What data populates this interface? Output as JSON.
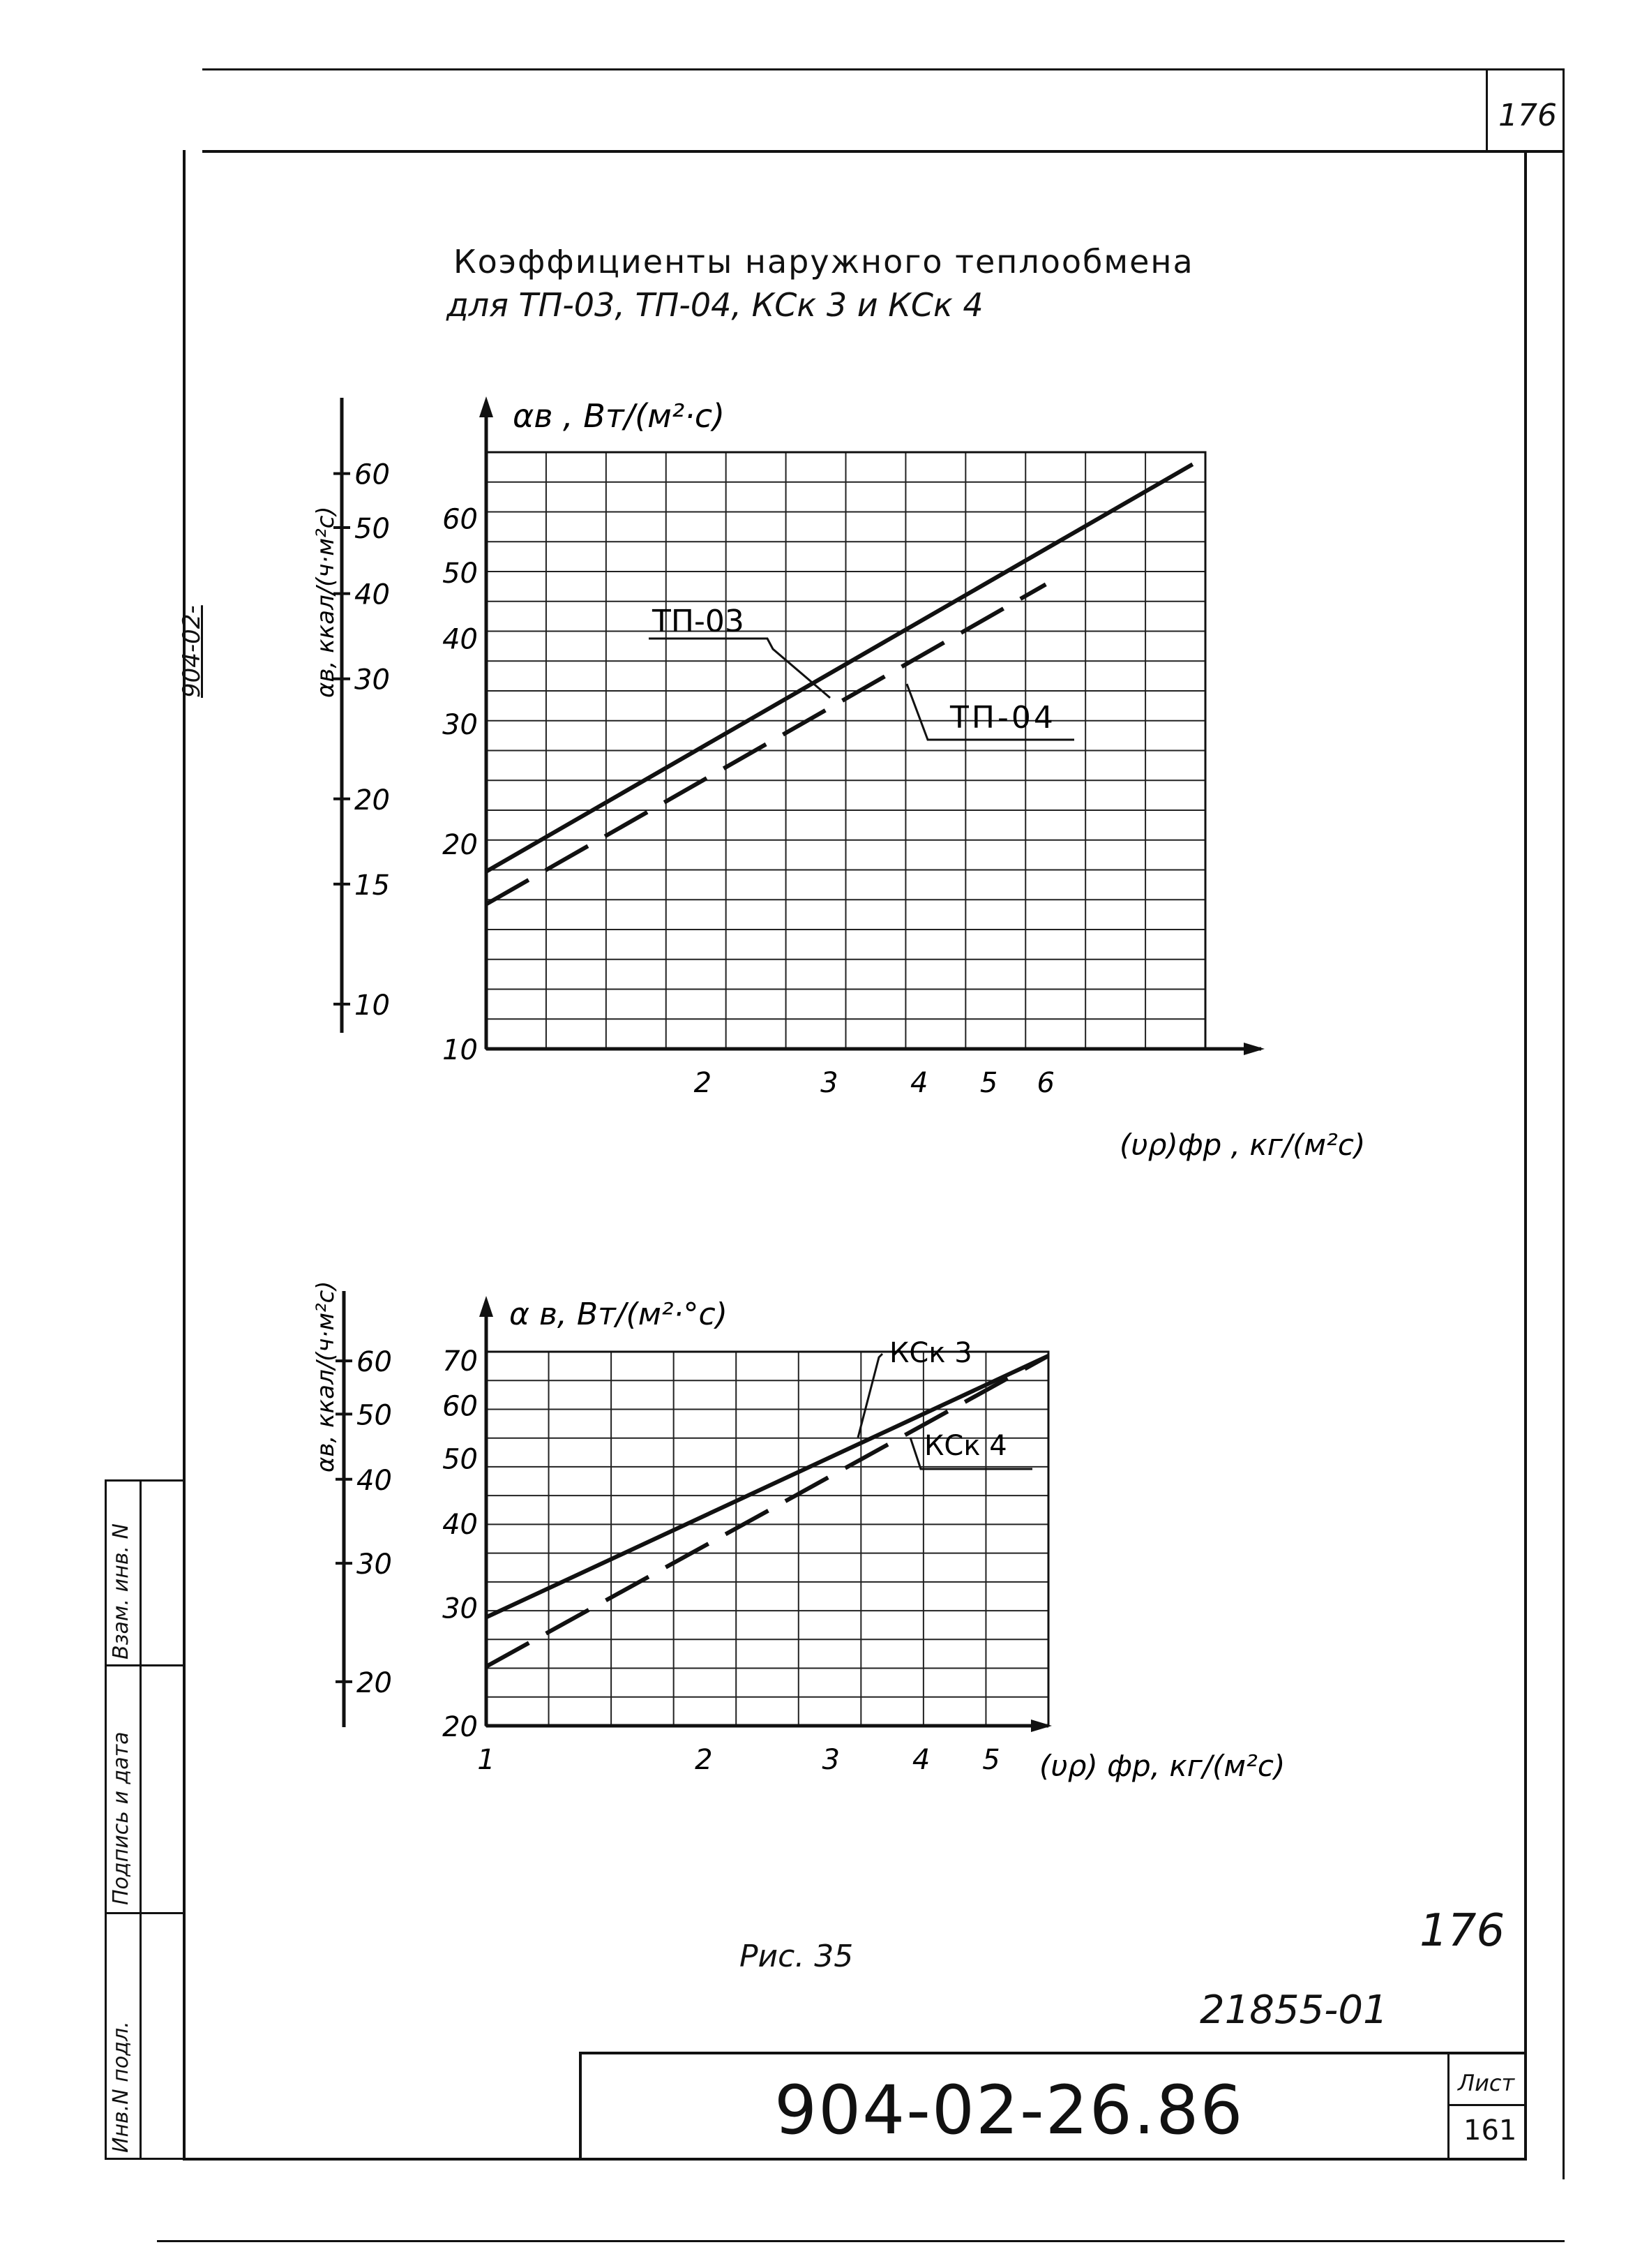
{
  "sheet": {
    "top_sheet_number": "176",
    "side_code": "904-02-",
    "figure_caption": "Рис. 35",
    "handwritten_number": "176",
    "inventory_number": "21855-01",
    "doc_code": "904-02-26.86",
    "sheet_label": "Лист",
    "sheet_number": "161",
    "stamp_fields": [
      "Инв.N подл.",
      "Подпись и дата",
      "Взам. инв. N"
    ]
  },
  "title": {
    "line1": "Коэффициенты наружного теплообмена",
    "line2": "для  ТП-03, ТП-04,  КСк 3  и  КСк 4"
  },
  "chart_data": [
    {
      "type": "line",
      "x_scale": "log",
      "y_scale": "log",
      "y_label": "αв , Вт/(м²·с)",
      "x_label": "(υρ)фр , кг/(м²с)",
      "secondary_y_label": "αв, ккал/(ч·м²с)",
      "xlim": [
        1,
        10
      ],
      "ylim": [
        10,
        75
      ],
      "x_ticks": [
        2,
        3,
        4,
        5,
        6
      ],
      "y_ticks": [
        10,
        20,
        30,
        40,
        50,
        60
      ],
      "secondary_y_ticks": [
        10,
        15,
        20,
        30,
        40,
        50,
        60
      ],
      "grid": true,
      "series": [
        {
          "name": "ТП-03",
          "style": "solid",
          "x": [
            1,
            9.6
          ],
          "y": [
            18.2,
            72
          ]
        },
        {
          "name": "ТП-04",
          "style": "dashed",
          "x": [
            1,
            6
          ],
          "y": [
            16.3,
            48
          ]
        }
      ]
    },
    {
      "type": "line",
      "x_scale": "log",
      "y_scale": "log",
      "y_label": "α в, Вт/(м²·°с)",
      "x_label": "(υρ) фр,  кг/(м²с)",
      "secondary_y_label": "αв, ккал/(ч·м²с)",
      "xlim": [
        1,
        6
      ],
      "ylim": [
        20,
        72
      ],
      "x_ticks": [
        1,
        2,
        3,
        4,
        5
      ],
      "y_ticks": [
        20,
        30,
        40,
        50,
        60,
        70
      ],
      "secondary_y_ticks": [
        20,
        30,
        40,
        50,
        60
      ],
      "grid": true,
      "series": [
        {
          "name": "КСк 3",
          "style": "solid",
          "x": [
            1,
            6
          ],
          "y": [
            29,
            71
          ]
        },
        {
          "name": "КСк 4",
          "style": "dashed",
          "x": [
            1,
            6
          ],
          "y": [
            24.5,
            71
          ]
        }
      ]
    }
  ]
}
